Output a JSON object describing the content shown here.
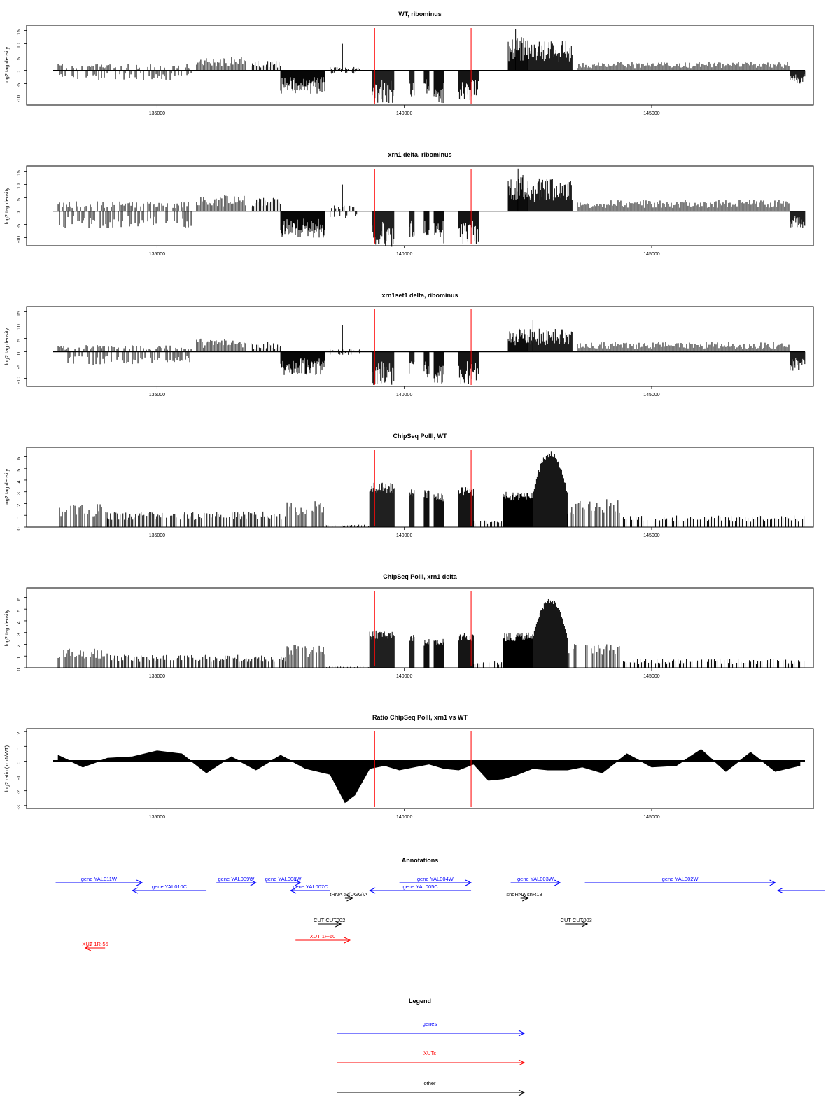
{
  "chart_data": [
    {
      "type": "bar",
      "title": "WT, ribominus",
      "ylabel": "log2 tag density",
      "ylim": [
        -13,
        17
      ],
      "yticks": [
        -10,
        -5,
        0,
        5,
        10,
        15
      ],
      "xlim": [
        132900,
        148100
      ],
      "xticks": [
        135000,
        140000,
        145000
      ],
      "grid": false,
      "legend": "none",
      "marker_lines_x": [
        139400,
        141350
      ],
      "marker_color": "#ff0000",
      "segments": [
        {
          "start": 133000,
          "end": 135700,
          "sign": "mixed",
          "pos": 2,
          "neg": -3
        },
        {
          "start": 135800,
          "end": 136800,
          "sign": "pos",
          "pos": 4
        },
        {
          "start": 136900,
          "end": 137500,
          "sign": "pos",
          "pos": 3
        },
        {
          "start": 137500,
          "end": 138400,
          "sign": "neg",
          "neg": -7
        },
        {
          "start": 138500,
          "end": 139100,
          "sign": "mixed",
          "pos": 1,
          "neg": -1
        },
        {
          "start": 139350,
          "end": 139800,
          "sign": "neg",
          "neg": -10
        },
        {
          "start": 140100,
          "end": 140200,
          "sign": "neg",
          "neg": -8
        },
        {
          "start": 140400,
          "end": 140500,
          "sign": "neg",
          "neg": -8
        },
        {
          "start": 140600,
          "end": 140800,
          "sign": "neg",
          "neg": -10
        },
        {
          "start": 141100,
          "end": 141500,
          "sign": "neg",
          "neg": -10
        },
        {
          "start": 142100,
          "end": 142500,
          "sign": "pos",
          "pos": 10
        },
        {
          "start": 142500,
          "end": 143400,
          "sign": "pos",
          "pos": 9
        },
        {
          "start": 143500,
          "end": 147800,
          "sign": "pos",
          "pos": 2.5
        },
        {
          "start": 147800,
          "end": 148100,
          "sign": "neg",
          "neg": -4
        }
      ],
      "spikes": [
        {
          "x": 138750,
          "y": 10
        },
        {
          "x": 142250,
          "y": 15.5
        },
        {
          "x": 139400,
          "y": -12
        }
      ]
    },
    {
      "type": "bar",
      "title": "xrn1 delta, ribominus",
      "ylabel": "log2 tag density",
      "ylim": [
        -13,
        17
      ],
      "yticks": [
        -10,
        -5,
        0,
        5,
        10,
        15
      ],
      "xlim": [
        132900,
        148100
      ],
      "xticks": [
        135000,
        140000,
        145000
      ],
      "grid": false,
      "legend": "none",
      "marker_lines_x": [
        139400,
        141350
      ],
      "marker_color": "#ff0000",
      "segments": [
        {
          "start": 133000,
          "end": 135700,
          "sign": "mixed",
          "pos": 3,
          "neg": -5
        },
        {
          "start": 135800,
          "end": 136800,
          "sign": "pos",
          "pos": 5
        },
        {
          "start": 136900,
          "end": 137500,
          "sign": "pos",
          "pos": 4
        },
        {
          "start": 137500,
          "end": 138400,
          "sign": "neg",
          "neg": -8
        },
        {
          "start": 138500,
          "end": 139100,
          "sign": "mixed",
          "pos": 2,
          "neg": -2
        },
        {
          "start": 139350,
          "end": 139800,
          "sign": "neg",
          "neg": -11
        },
        {
          "start": 140100,
          "end": 140200,
          "sign": "neg",
          "neg": -8
        },
        {
          "start": 140400,
          "end": 140500,
          "sign": "neg",
          "neg": -8
        },
        {
          "start": 140600,
          "end": 140800,
          "sign": "neg",
          "neg": -10
        },
        {
          "start": 141100,
          "end": 141500,
          "sign": "neg",
          "neg": -10
        },
        {
          "start": 142100,
          "end": 142500,
          "sign": "pos",
          "pos": 11
        },
        {
          "start": 142500,
          "end": 143400,
          "sign": "pos",
          "pos": 10
        },
        {
          "start": 143500,
          "end": 147800,
          "sign": "pos",
          "pos": 3.5
        },
        {
          "start": 147800,
          "end": 148100,
          "sign": "neg",
          "neg": -5
        }
      ],
      "spikes": [
        {
          "x": 138750,
          "y": 10
        },
        {
          "x": 142300,
          "y": 16
        },
        {
          "x": 139400,
          "y": -12
        }
      ]
    },
    {
      "type": "bar",
      "title": "xrn1set1 delta, ribominus",
      "ylabel": "log2 tag density",
      "ylim": [
        -13,
        17
      ],
      "yticks": [
        -10,
        -5,
        0,
        5,
        10,
        15
      ],
      "xlim": [
        132900,
        148100
      ],
      "xticks": [
        135000,
        140000,
        145000
      ],
      "grid": false,
      "legend": "none",
      "marker_lines_x": [
        139400,
        141350
      ],
      "marker_color": "#ff0000",
      "segments": [
        {
          "start": 133000,
          "end": 135700,
          "sign": "mixed",
          "pos": 2,
          "neg": -4
        },
        {
          "start": 135800,
          "end": 136800,
          "sign": "pos",
          "pos": 4
        },
        {
          "start": 136900,
          "end": 137500,
          "sign": "pos",
          "pos": 3
        },
        {
          "start": 137500,
          "end": 138400,
          "sign": "neg",
          "neg": -7
        },
        {
          "start": 138500,
          "end": 139100,
          "sign": "mixed",
          "pos": 1,
          "neg": -1
        },
        {
          "start": 139350,
          "end": 139800,
          "sign": "neg",
          "neg": -10
        },
        {
          "start": 140100,
          "end": 140200,
          "sign": "neg",
          "neg": -7
        },
        {
          "start": 140400,
          "end": 140500,
          "sign": "neg",
          "neg": -8
        },
        {
          "start": 140600,
          "end": 140800,
          "sign": "neg",
          "neg": -10
        },
        {
          "start": 141100,
          "end": 141500,
          "sign": "neg",
          "neg": -10
        },
        {
          "start": 142100,
          "end": 142500,
          "sign": "pos",
          "pos": 7
        },
        {
          "start": 142500,
          "end": 143400,
          "sign": "pos",
          "pos": 7
        },
        {
          "start": 143500,
          "end": 147800,
          "sign": "pos",
          "pos": 3
        },
        {
          "start": 147800,
          "end": 148100,
          "sign": "neg",
          "neg": -6
        }
      ],
      "spikes": [
        {
          "x": 138750,
          "y": 10
        },
        {
          "x": 142600,
          "y": 12
        },
        {
          "x": 139400,
          "y": -12
        }
      ]
    },
    {
      "type": "bar",
      "title": "ChipSeq PolII, WT",
      "ylabel": "log2 tag density",
      "ylim": [
        0,
        6.8
      ],
      "yticks": [
        0,
        1,
        2,
        3,
        4,
        5,
        6
      ],
      "xlim": [
        132900,
        148100
      ],
      "xticks": [
        135000,
        140000,
        145000
      ],
      "grid": false,
      "legend": "none",
      "marker_lines_x": [
        139400,
        141350
      ],
      "marker_color": "#ff0000",
      "segments": [
        {
          "start": 133000,
          "end": 134000,
          "level": 1.8
        },
        {
          "start": 134000,
          "end": 137600,
          "level": 1.2
        },
        {
          "start": 137600,
          "end": 138400,
          "level": 2
        },
        {
          "start": 138400,
          "end": 139300,
          "level": 0.2
        },
        {
          "start": 139300,
          "end": 139800,
          "level": 3.8
        },
        {
          "start": 140100,
          "end": 140200,
          "level": 3.4
        },
        {
          "start": 140400,
          "end": 140500,
          "level": 3.2
        },
        {
          "start": 140600,
          "end": 140800,
          "level": 2.9
        },
        {
          "start": 141100,
          "end": 141400,
          "level": 3.5
        },
        {
          "start": 141400,
          "end": 142000,
          "level": 0.5
        },
        {
          "start": 142000,
          "end": 142600,
          "level": 3
        },
        {
          "start": 142600,
          "end": 143300,
          "level": 6.5
        },
        {
          "start": 143300,
          "end": 144400,
          "level": 2.2
        },
        {
          "start": 144400,
          "end": 148100,
          "level": 0.9
        }
      ]
    },
    {
      "type": "bar",
      "title": "ChipSeq PolII, xrn1 delta",
      "ylabel": "log2 tag density",
      "ylim": [
        0,
        6.8
      ],
      "yticks": [
        0,
        1,
        2,
        3,
        4,
        5,
        6
      ],
      "xlim": [
        132900,
        148100
      ],
      "xticks": [
        135000,
        140000,
        145000
      ],
      "grid": false,
      "legend": "none",
      "marker_lines_x": [
        139400,
        141350
      ],
      "marker_color": "#ff0000",
      "segments": [
        {
          "start": 133000,
          "end": 134000,
          "level": 1.5
        },
        {
          "start": 134000,
          "end": 137600,
          "level": 1
        },
        {
          "start": 137600,
          "end": 138400,
          "level": 1.8
        },
        {
          "start": 138400,
          "end": 139300,
          "level": 0.1
        },
        {
          "start": 139300,
          "end": 139800,
          "level": 3.2
        },
        {
          "start": 140100,
          "end": 140200,
          "level": 2.8
        },
        {
          "start": 140400,
          "end": 140500,
          "level": 2.5
        },
        {
          "start": 140600,
          "end": 140800,
          "level": 2.5
        },
        {
          "start": 141100,
          "end": 141400,
          "level": 3
        },
        {
          "start": 141400,
          "end": 142000,
          "level": 0.5
        },
        {
          "start": 142000,
          "end": 142600,
          "level": 3
        },
        {
          "start": 142600,
          "end": 143300,
          "level": 5.9
        },
        {
          "start": 143300,
          "end": 144400,
          "level": 2
        },
        {
          "start": 144400,
          "end": 148100,
          "level": 0.7
        }
      ]
    },
    {
      "type": "area",
      "title": "Ratio ChipSeq PolII, xrn1 vs WT",
      "ylabel": "log2 ratio (xrn1/WT)",
      "ylim": [
        -3.2,
        2.2
      ],
      "yticks": [
        -3,
        -2,
        -1,
        0,
        1,
        2
      ],
      "xlim": [
        132900,
        148100
      ],
      "xticks": [
        135000,
        140000,
        145000
      ],
      "grid": false,
      "legend": "none",
      "marker_lines_x": [
        139400,
        141350
      ],
      "marker_color": "#ff0000",
      "x": [
        133000,
        133500,
        134000,
        134500,
        135000,
        135500,
        136000,
        136500,
        137000,
        137500,
        138000,
        138500,
        138800,
        139000,
        139300,
        139600,
        139900,
        140200,
        140500,
        140800,
        141100,
        141400,
        141700,
        142000,
        142300,
        142600,
        142900,
        143300,
        143600,
        144000,
        144500,
        145000,
        145500,
        146000,
        146500,
        147000,
        147500,
        148000
      ],
      "y": [
        0.4,
        -0.4,
        0.2,
        0.3,
        0.7,
        0.5,
        -0.8,
        0.3,
        -0.6,
        0.4,
        -0.5,
        -0.9,
        -2.8,
        -2.3,
        -0.5,
        -0.3,
        -0.6,
        -0.4,
        -0.2,
        -0.5,
        -0.6,
        -0.2,
        -1.3,
        -1.2,
        -0.9,
        -0.5,
        -0.6,
        -0.6,
        -0.4,
        -0.8,
        0.5,
        -0.4,
        -0.3,
        0.8,
        -0.7,
        0.6,
        -0.7,
        -0.3
      ]
    }
  ],
  "annotations": {
    "title": "Annotations",
    "xlim": [
      132900,
      148100
    ],
    "items": [
      {
        "label": "gene YAL011W",
        "start": 132950,
        "end": 134700,
        "dir": "right",
        "row": 0,
        "kind": "gene"
      },
      {
        "label": "gene YAL010C",
        "start": 134500,
        "end": 136000,
        "dir": "left",
        "row": 1,
        "kind": "gene"
      },
      {
        "label": "gene YAL009W",
        "start": 136200,
        "end": 137000,
        "dir": "right",
        "row": 0,
        "kind": "gene"
      },
      {
        "label": "gene YAL008W",
        "start": 137200,
        "end": 137900,
        "dir": "right",
        "row": 0,
        "kind": "gene"
      },
      {
        "label": "gene YAL007C",
        "start": 137700,
        "end": 138500,
        "dir": "left",
        "row": 1,
        "kind": "gene"
      },
      {
        "label": "tRNA tP(UGG)A",
        "start": 138800,
        "end": 138950,
        "dir": "right",
        "row": 2,
        "kind": "other"
      },
      {
        "label": "gene YAL005C",
        "start": 139300,
        "end": 141350,
        "dir": "left",
        "row": 1,
        "kind": "gene"
      },
      {
        "label": "gene YAL004W",
        "start": 139900,
        "end": 141350,
        "dir": "right",
        "row": 0,
        "kind": "gene"
      },
      {
        "label": "gene YAL003W",
        "start": 142150,
        "end": 143150,
        "dir": "right",
        "row": 0,
        "kind": "gene"
      },
      {
        "label": "snoRNA snR18",
        "start": 142350,
        "end": 142500,
        "dir": "right",
        "row": 2,
        "kind": "other"
      },
      {
        "label": "gene YAL002W",
        "start": 143650,
        "end": 147500,
        "dir": "right",
        "row": 0,
        "kind": "gene"
      },
      {
        "label": "",
        "start": 147550,
        "end": 148500,
        "dir": "left",
        "row": 1,
        "kind": "gene"
      },
      {
        "label": "CUT CUT002",
        "start": 138250,
        "end": 138720,
        "dir": "right",
        "row": 3,
        "kind": "other"
      },
      {
        "label": "CUT CUT003",
        "start": 143250,
        "end": 143700,
        "dir": "right",
        "row": 3,
        "kind": "other"
      },
      {
        "label": "XUT 1F-60",
        "start": 137800,
        "end": 138900,
        "dir": "right",
        "row": 4,
        "kind": "xut"
      },
      {
        "label": "XUT 1R-55",
        "start": 133550,
        "end": 133950,
        "dir": "left",
        "row": 5,
        "kind": "xut"
      }
    ]
  },
  "legend": {
    "title": "Legend",
    "entries": [
      {
        "label": "genes",
        "color": "#0000ff"
      },
      {
        "label": "XUTs",
        "color": "#ff0000"
      },
      {
        "label": "other",
        "color": "#000000"
      }
    ]
  },
  "colors": {
    "gene": "#0000ff",
    "xut": "#ff0000",
    "other": "#000000",
    "bars": "#000000",
    "marker": "#ff0000"
  }
}
